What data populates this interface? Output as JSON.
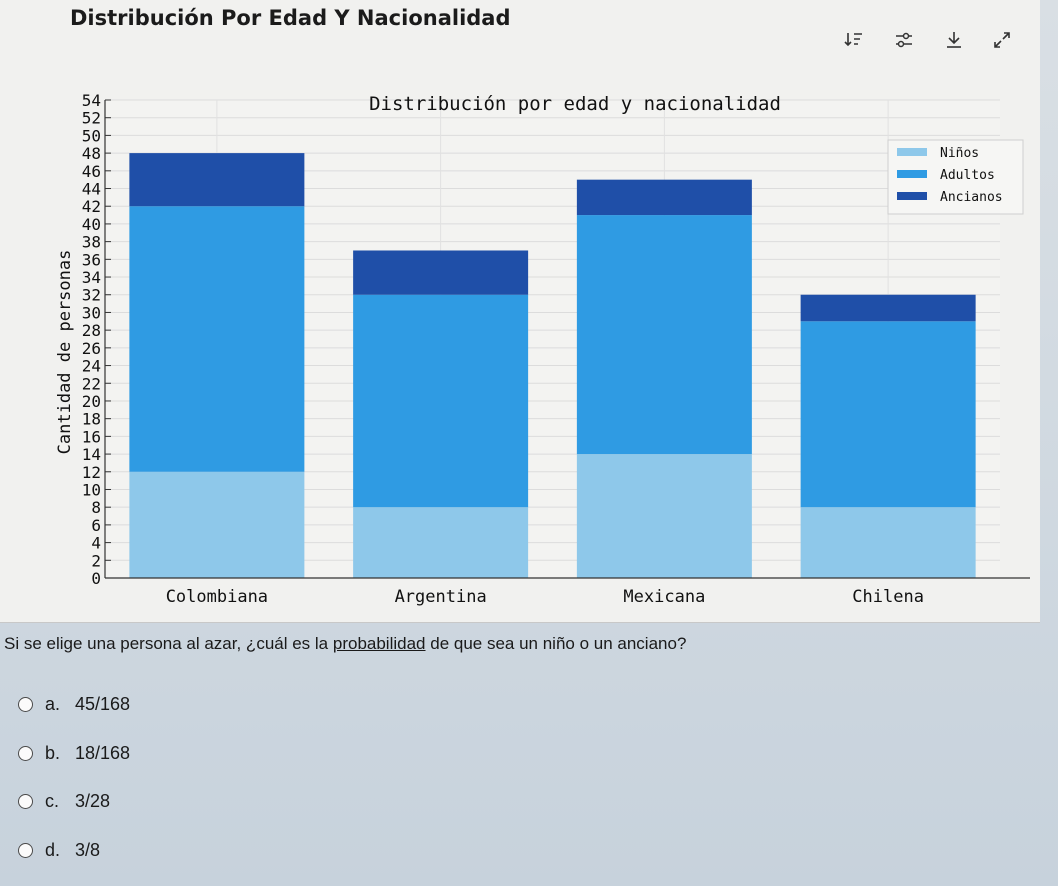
{
  "card": {
    "title": "Distribución Por Edad Y Nacionalidad"
  },
  "toolbar": {
    "icons": [
      "sort-icon",
      "filter-icon",
      "download-icon",
      "expand-icon"
    ]
  },
  "chart_data": {
    "type": "bar",
    "title": "Distribución por edad y nacionalidad",
    "xlabel": "",
    "ylabel": "Cantidad de personas",
    "categories": [
      "Colombiana",
      "Argentina",
      "Mexicana",
      "Chilena"
    ],
    "series": [
      {
        "name": "Niños",
        "values": [
          12,
          8,
          14,
          8
        ],
        "color": "#8ec8ea"
      },
      {
        "name": "Adultos",
        "values": [
          30,
          24,
          27,
          21
        ],
        "color": "#2f9be3"
      },
      {
        "name": "Ancianos",
        "values": [
          6,
          5,
          4,
          3
        ],
        "color": "#1f4fa8"
      }
    ],
    "ylim": [
      0,
      54
    ],
    "yticks": [
      0,
      2,
      4,
      6,
      8,
      10,
      12,
      14,
      16,
      18,
      20,
      22,
      24,
      26,
      28,
      30,
      32,
      34,
      36,
      38,
      40,
      42,
      44,
      46,
      48,
      50,
      52,
      54
    ],
    "stacked": true,
    "grid": true,
    "legend": "top-right"
  },
  "question": {
    "before": "Si se elige una persona al azar, ¿cuál es la ",
    "link": "probabilidad",
    "after": " de que sea un niño o un anciano?"
  },
  "options": [
    {
      "letter": "a.",
      "text": "45/168"
    },
    {
      "letter": "b.",
      "text": "18/168"
    },
    {
      "letter": "c.",
      "text": "3/28"
    },
    {
      "letter": "d.",
      "text": "3/8"
    }
  ]
}
